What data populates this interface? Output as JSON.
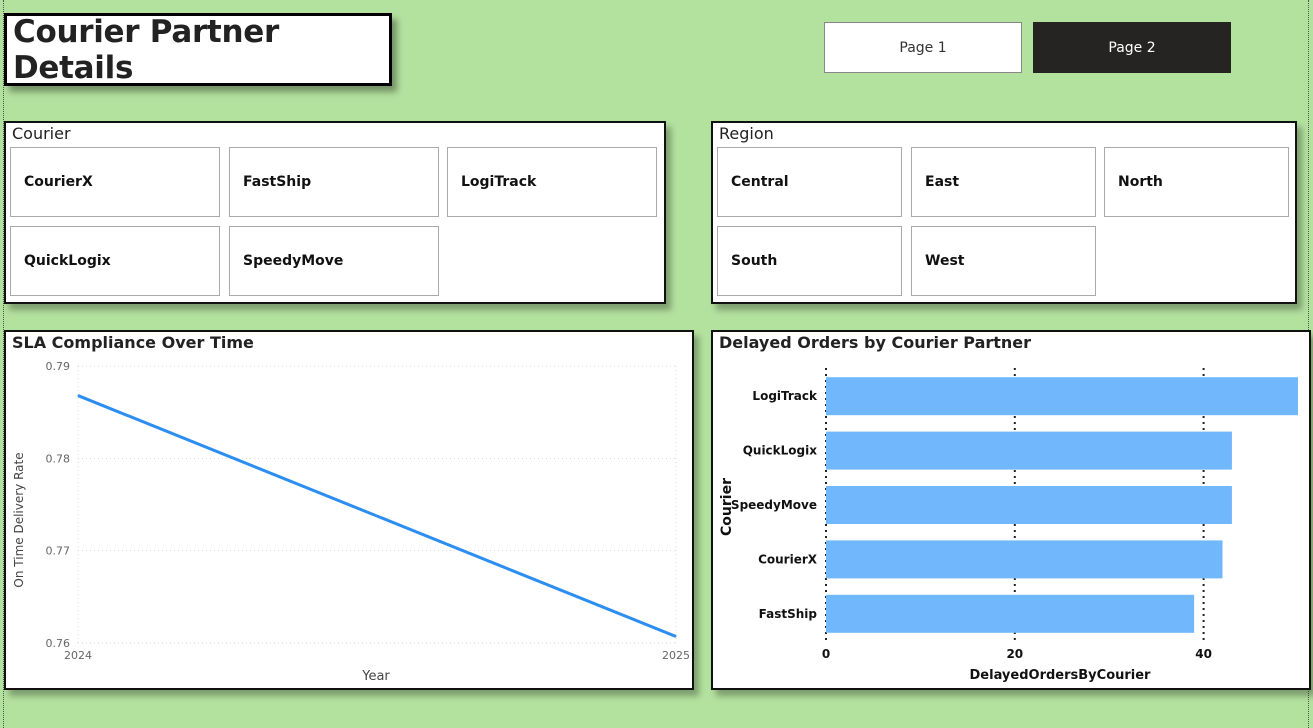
{
  "header": {
    "title": "Courier Partner Details"
  },
  "nav": {
    "page1_label": "Page 1",
    "page2_label": "Page 2"
  },
  "courier_slicer": {
    "title": "Courier",
    "items": [
      "CourierX",
      "FastShip",
      "LogiTrack",
      "QuickLogix",
      "SpeedyMove"
    ]
  },
  "region_slicer": {
    "title": "Region",
    "items": [
      "Central",
      "East",
      "North",
      "South",
      "West"
    ]
  },
  "chart_data": [
    {
      "type": "line",
      "title": "SLA Compliance Over Time",
      "xlabel": "Year",
      "ylabel": "On Time Delivery Rate",
      "x": [
        "2024",
        "2025"
      ],
      "series": [
        {
          "name": "On Time Delivery Rate",
          "values": [
            0.7868,
            0.7607
          ],
          "color": "#2b8ef0"
        }
      ],
      "ylim": [
        0.76,
        0.79
      ],
      "yticks": [
        "0.76",
        "0.77",
        "0.78",
        "0.79"
      ],
      "grid": true
    },
    {
      "type": "bar",
      "orientation": "horizontal",
      "title": "Delayed Orders by Courier Partner",
      "xlabel": "DelayedOrdersByCourier",
      "ylabel": "Courier",
      "categories": [
        "LogiTrack",
        "QuickLogix",
        "SpeedyMove",
        "CourierX",
        "FastShip"
      ],
      "values": [
        50,
        43,
        43,
        42,
        39
      ],
      "xlim": [
        0,
        50
      ],
      "xticks": [
        "0",
        "20",
        "40"
      ],
      "color": "#70b8fb",
      "grid": true
    }
  ]
}
